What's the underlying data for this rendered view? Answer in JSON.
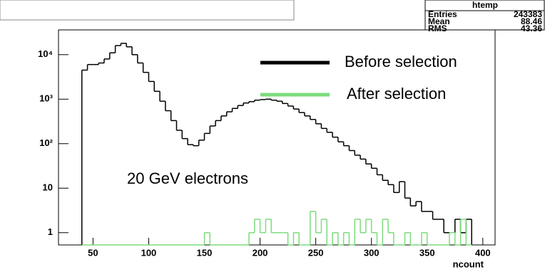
{
  "chart_data": {
    "type": "histogram",
    "xlabel": "ncount",
    "annotation": "20 GeV electrons",
    "log_y": true,
    "xlim": [
      19,
      411
    ],
    "xticks": [
      50,
      100,
      150,
      200,
      250,
      300,
      350,
      400
    ],
    "ylim": [
      0.53,
      36000
    ],
    "yticks": [
      1,
      10,
      {
        "value": 100,
        "label": "10²"
      },
      {
        "value": 1000,
        "label": "10³"
      },
      {
        "value": 10000,
        "label": "10⁴"
      }
    ],
    "stats": {
      "title": "htemp",
      "rows": [
        [
          "Entries",
          "243383"
        ],
        [
          "Mean",
          "88.46"
        ],
        [
          "RMS",
          "43.36"
        ]
      ]
    },
    "bins": [
      40,
      45,
      50,
      55,
      60,
      65,
      70,
      75,
      80,
      85,
      90,
      95,
      100,
      105,
      110,
      115,
      120,
      125,
      130,
      135,
      140,
      145,
      150,
      155,
      160,
      165,
      170,
      175,
      180,
      185,
      190,
      195,
      200,
      205,
      210,
      215,
      220,
      225,
      230,
      235,
      240,
      245,
      250,
      255,
      260,
      265,
      270,
      275,
      280,
      285,
      290,
      295,
      300,
      305,
      310,
      315,
      320,
      325,
      330,
      335,
      340,
      345,
      350,
      355,
      360,
      365,
      370,
      375,
      380,
      385,
      390
    ],
    "series": [
      {
        "name": "Before selection",
        "color": "#000000",
        "values": [
          4500,
          6000,
          6000,
          6500,
          8000,
          11000,
          16000,
          18000,
          15000,
          10000,
          6500,
          4000,
          2500,
          1500,
          900,
          550,
          330,
          200,
          130,
          95,
          90,
          120,
          170,
          250,
          330,
          420,
          520,
          620,
          720,
          820,
          880,
          950,
          980,
          1000,
          950,
          900,
          800,
          700,
          600,
          500,
          420,
          350,
          280,
          220,
          180,
          140,
          110,
          90,
          70,
          55,
          45,
          35,
          28,
          20,
          15,
          12,
          8,
          14,
          6,
          4,
          5,
          3,
          3,
          2,
          2,
          1,
          1,
          2,
          1,
          2
        ]
      },
      {
        "name": "After selection",
        "color": "#7cdc7c",
        "values": [
          0,
          0,
          0,
          0,
          0,
          0,
          0,
          0,
          0,
          0,
          0,
          0,
          0,
          0,
          0,
          0,
          0,
          0,
          0,
          0,
          0,
          0,
          1,
          0,
          0,
          0,
          0,
          0,
          0,
          0,
          1,
          2,
          1,
          2,
          1,
          1,
          1,
          0,
          1,
          0,
          0,
          3,
          1,
          2,
          0,
          1,
          0,
          1,
          0,
          2,
          1,
          2,
          1,
          0,
          2,
          1,
          0,
          0,
          1,
          0,
          0,
          1,
          0,
          0,
          0,
          0,
          1,
          0,
          2,
          0
        ]
      }
    ]
  }
}
